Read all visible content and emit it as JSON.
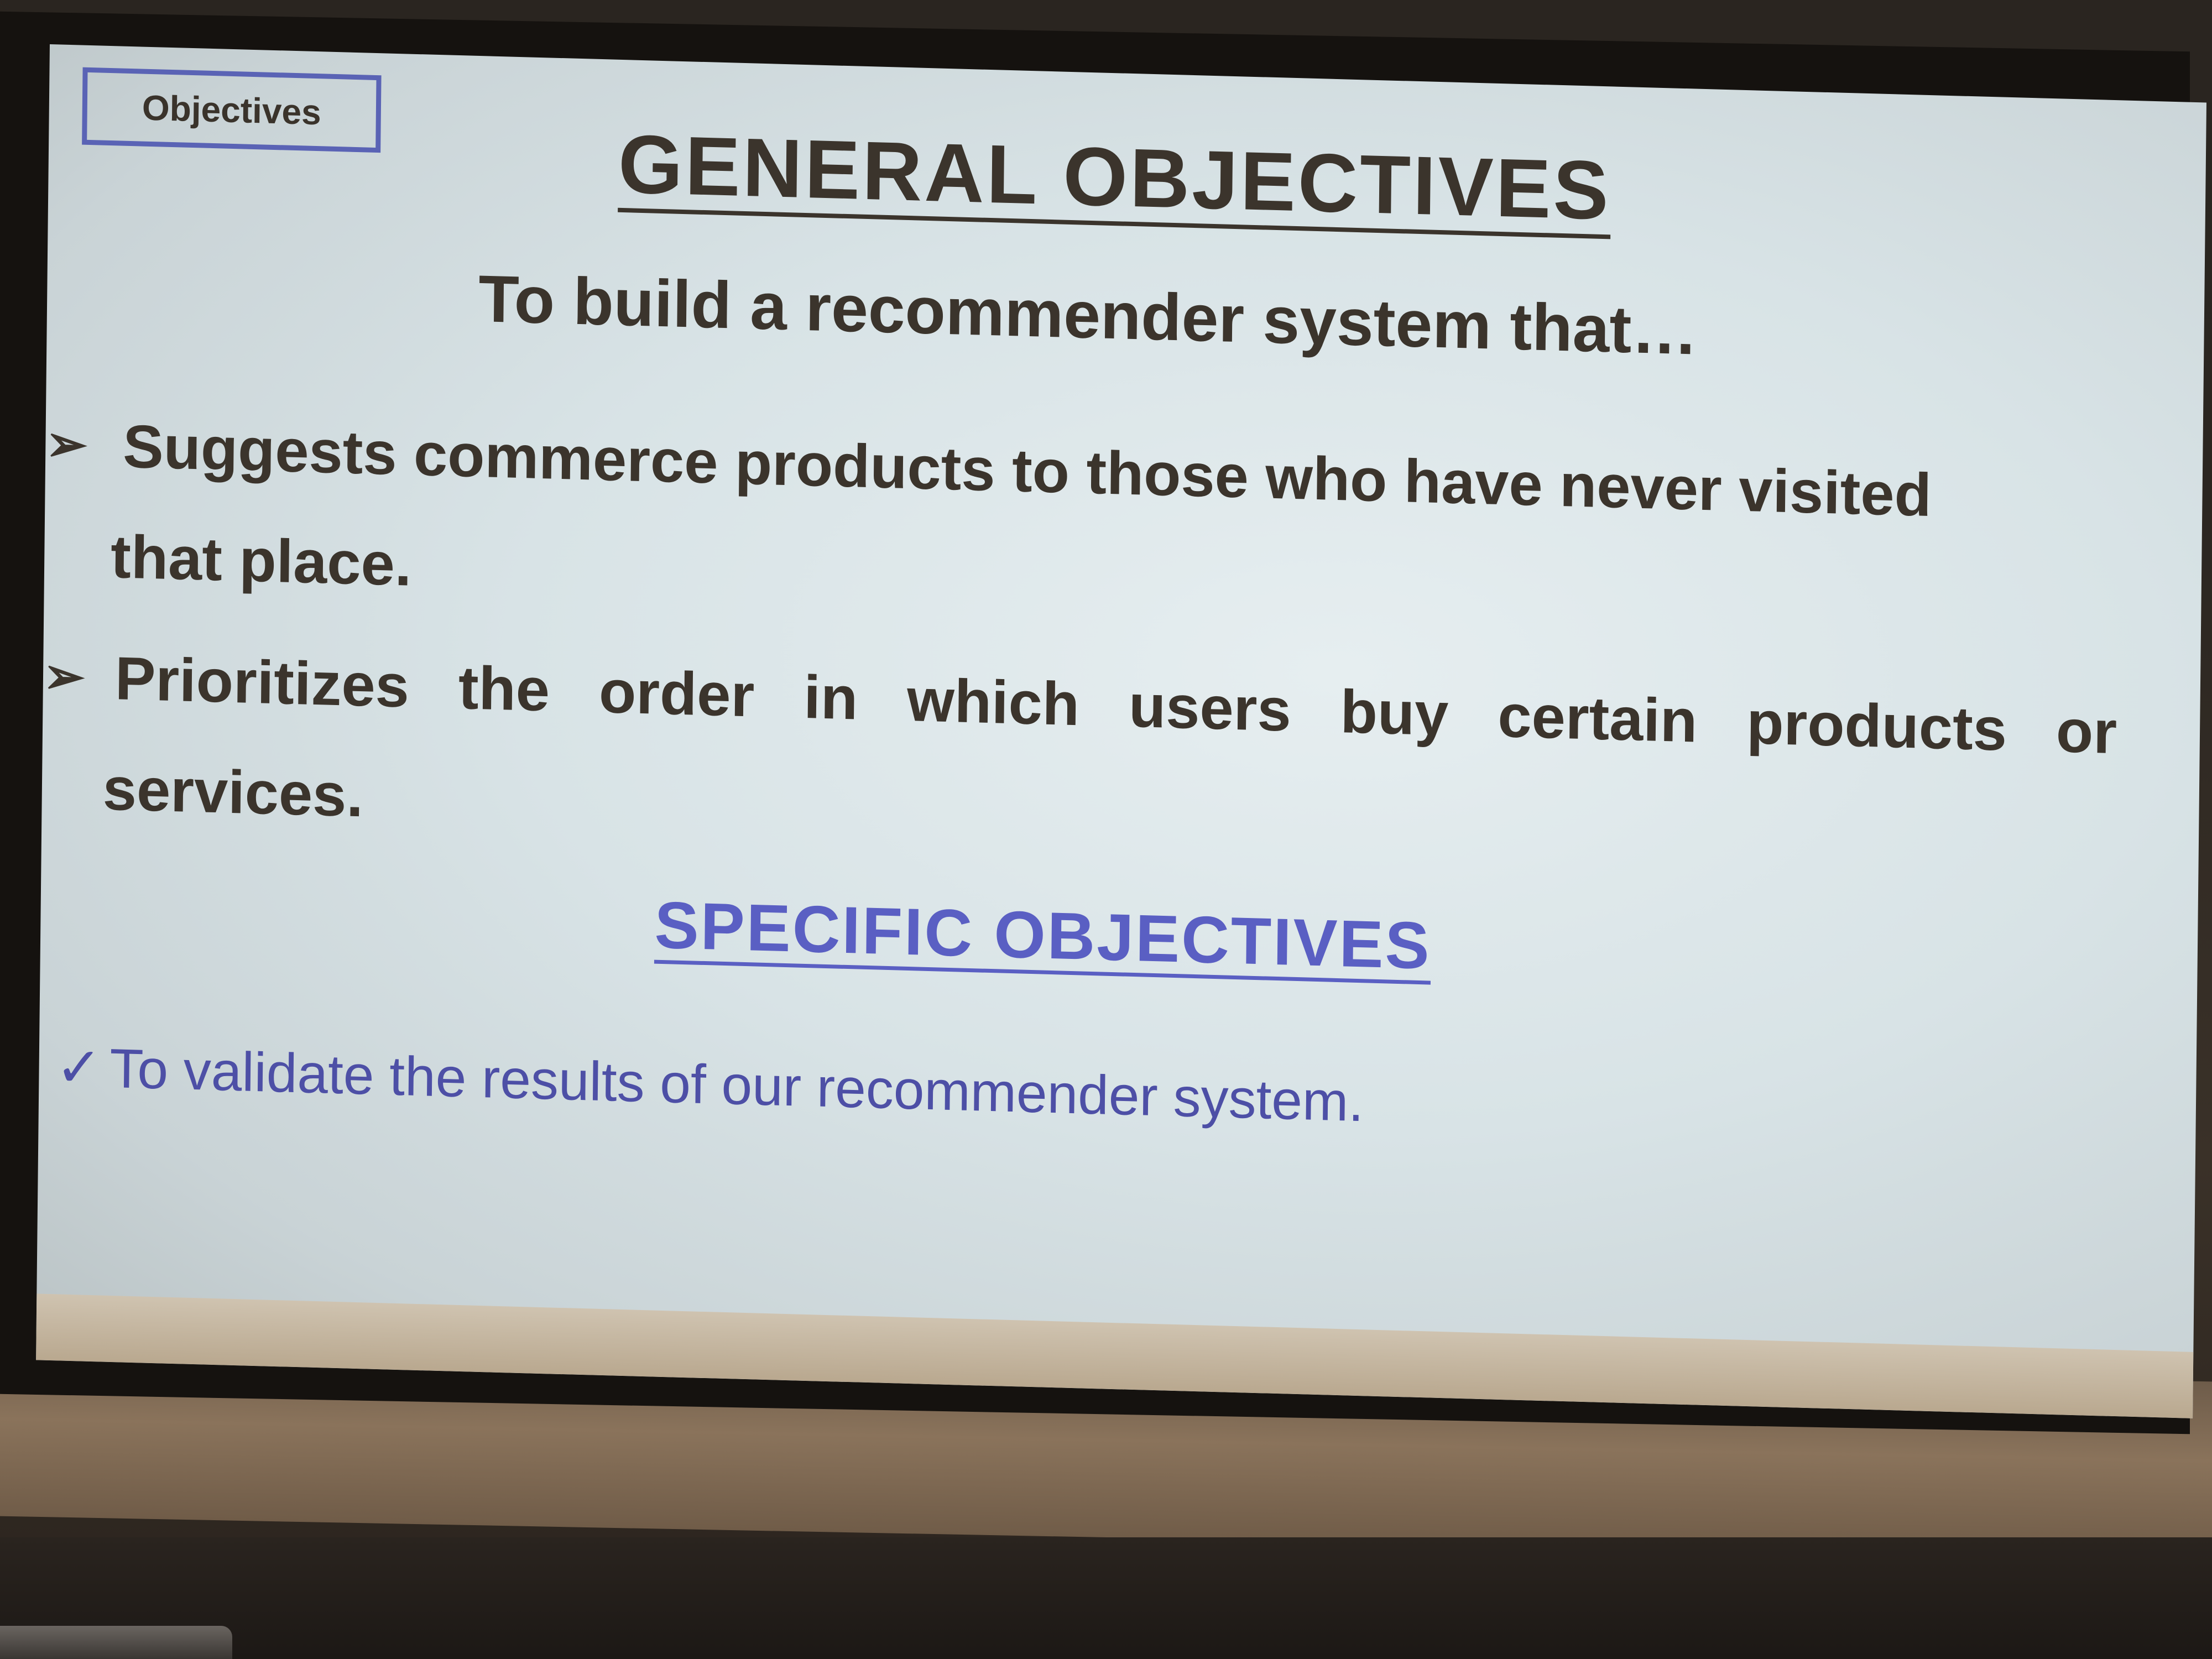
{
  "slide": {
    "badge": "Objectives",
    "general_title": "GENERAL OBJECTIVES",
    "subtitle": "To build a recommender system that…",
    "bullets": [
      {
        "line1": "Suggests commerce products to those who have never visited",
        "line2": "that place."
      },
      {
        "line1": "Prioritizes the order in which users buy certain products or",
        "line2": "services."
      }
    ],
    "specific_title": "SPECIFIC OBJECTIVES",
    "specific_items": [
      "To validate the results of our recommender system."
    ]
  },
  "colors": {
    "body_text": "#3b342c",
    "accent_blue": "#5a5fc3",
    "badge_border": "#5a63b5",
    "slide_background": "#dce5e8"
  },
  "icons": {
    "bullet_marker": "arrowhead-bullet-icon",
    "specific_marker": "checkmark-icon"
  }
}
